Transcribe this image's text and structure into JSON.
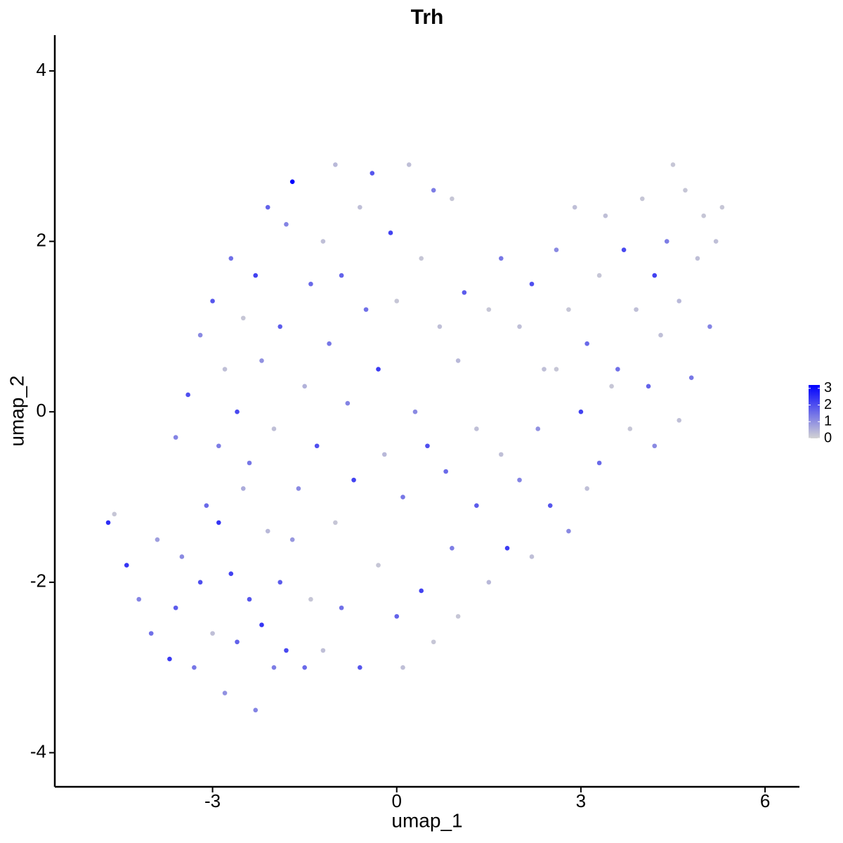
{
  "chart_data": {
    "type": "scatter",
    "title": "Trh",
    "xlabel": "umap_1",
    "ylabel": "umap_2",
    "xlim": [
      -5.57,
      6.56
    ],
    "ylim": [
      -4.4,
      4.42
    ],
    "xticks": [
      -3,
      0,
      3,
      6
    ],
    "yticks": [
      -4,
      -2,
      0,
      2,
      4
    ],
    "grid": false,
    "color_low": "#d3d3d3",
    "color_high": "#0000ff",
    "color_lim": [
      0,
      3.2
    ],
    "color_ticks": [
      0,
      1,
      2,
      3
    ],
    "x": [
      -4.7,
      -4.6,
      -4.4,
      -4.2,
      -4.0,
      -3.9,
      -3.7,
      -3.6,
      -3.5,
      -3.3,
      -3.2,
      -3.1,
      -3.0,
      -2.9,
      -2.8,
      -2.7,
      -2.6,
      -2.5,
      -2.4,
      -2.3,
      -2.2,
      -2.1,
      -2.0,
      -1.9,
      -1.8,
      -1.7,
      -1.5,
      -1.4,
      -3.6,
      -3.4,
      -3.2,
      -3.0,
      -2.9,
      -2.8,
      -2.7,
      -2.6,
      -2.5,
      -2.4,
      -2.3,
      -2.2,
      -2.1,
      -2.0,
      -1.9,
      -1.8,
      -1.7,
      -1.6,
      -1.5,
      -1.4,
      -1.3,
      -1.2,
      -1.1,
      -1.0,
      -1.0,
      -0.9,
      -0.8,
      -0.7,
      -0.6,
      -0.5,
      -0.4,
      -0.3,
      -0.2,
      -0.1,
      0.0,
      0.1,
      0.2,
      0.3,
      0.4,
      0.5,
      0.6,
      0.7,
      0.8,
      0.9,
      1.0,
      1.1,
      1.3,
      1.5,
      -1.2,
      -0.9,
      -0.6,
      -0.3,
      0.0,
      0.1,
      0.4,
      0.6,
      0.9,
      1.0,
      1.3,
      1.5,
      1.7,
      1.8,
      2.0,
      2.2,
      2.3,
      2.5,
      2.6,
      2.8,
      3.0,
      3.1,
      3.3,
      3.5,
      1.7,
      2.0,
      2.2,
      2.4,
      2.6,
      2.8,
      2.9,
      3.1,
      3.3,
      3.4,
      3.6,
      3.7,
      3.9,
      4.0,
      4.1,
      4.2,
      4.3,
      4.4,
      4.5,
      4.6,
      4.7,
      4.8,
      4.9,
      5.0,
      5.1,
      5.2,
      5.3,
      4.6,
      4.2,
      3.8
    ],
    "y": [
      -1.3,
      -1.2,
      -1.8,
      -2.2,
      -2.6,
      -1.5,
      -2.9,
      -2.3,
      -1.7,
      -3.0,
      -2.0,
      -1.1,
      -2.6,
      -0.4,
      -3.3,
      -1.9,
      -2.7,
      -0.9,
      -2.2,
      -3.5,
      -2.5,
      -1.4,
      -3.0,
      -2.0,
      -2.8,
      -1.5,
      -3.0,
      -2.2,
      -0.3,
      0.2,
      0.9,
      1.3,
      -1.3,
      0.5,
      1.8,
      0.0,
      1.1,
      -0.6,
      1.6,
      0.6,
      2.4,
      -0.2,
      1.0,
      2.2,
      2.7,
      -0.9,
      0.3,
      1.5,
      -0.4,
      2.0,
      0.8,
      -1.3,
      2.9,
      1.6,
      0.1,
      -0.8,
      2.4,
      1.2,
      2.8,
      0.5,
      -0.5,
      2.1,
      1.3,
      -1.0,
      2.9,
      0.0,
      1.8,
      -0.4,
      2.6,
      1.0,
      -0.7,
      2.5,
      0.6,
      1.4,
      -0.2,
      1.2,
      -2.8,
      -2.3,
      -3.0,
      -1.8,
      -2.4,
      -3.0,
      -2.1,
      -2.7,
      -1.6,
      -2.4,
      -1.1,
      -2.0,
      -0.5,
      -1.6,
      -0.8,
      -1.7,
      -0.2,
      -1.1,
      0.5,
      -1.4,
      0.0,
      -0.9,
      -0.6,
      0.3,
      1.8,
      1.0,
      1.5,
      0.5,
      1.9,
      1.2,
      2.4,
      0.8,
      1.6,
      2.3,
      0.5,
      1.9,
      1.2,
      2.5,
      0.3,
      1.6,
      0.9,
      2.0,
      2.9,
      1.3,
      2.6,
      0.4,
      1.8,
      2.3,
      1.0,
      2.0,
      2.4,
      -0.1,
      -0.4,
      -0.2
    ],
    "values": [
      2.5,
      0.2,
      2.4,
      1.2,
      1.5,
      0.8,
      2.3,
      1.8,
      1.1,
      1.4,
      2.0,
      1.6,
      0.3,
      1.3,
      1.0,
      2.2,
      1.7,
      0.6,
      1.9,
      1.2,
      2.4,
      0.4,
      1.3,
      1.8,
      2.1,
      0.9,
      1.6,
      0.2,
      1.2,
      2.0,
      1.1,
      1.9,
      2.4,
      0.3,
      1.5,
      2.1,
      0.2,
      1.4,
      2.2,
      1.0,
      1.7,
      0.3,
      1.8,
      1.2,
      3.2,
      1.1,
      0.5,
      1.6,
      2.0,
      0.3,
      1.4,
      0.2,
      0.4,
      1.7,
      1.2,
      2.2,
      0.3,
      1.5,
      1.9,
      2.3,
      0.4,
      2.2,
      0.2,
      1.4,
      0.3,
      1.1,
      0.2,
      2.0,
      1.3,
      0.3,
      1.6,
      0.2,
      0.4,
      1.8,
      0.3,
      0.2,
      0.3,
      1.5,
      1.9,
      0.2,
      1.7,
      0.3,
      2.2,
      0.2,
      1.3,
      0.2,
      1.8,
      0.4,
      0.3,
      2.3,
      1.2,
      0.3,
      1.0,
      1.9,
      0.2,
      1.1,
      2.2,
      0.3,
      1.6,
      0.2,
      1.4,
      0.3,
      2.0,
      0.3,
      1.1,
      0.2,
      0.3,
      1.6,
      0.2,
      0.3,
      1.5,
      2.1,
      0.3,
      0.2,
      1.7,
      2.2,
      0.3,
      1.3,
      0.2,
      0.4,
      0.2,
      1.4,
      0.3,
      0.2,
      1.2,
      0.3,
      0.2,
      0.3,
      1.1,
      0.2
    ]
  }
}
